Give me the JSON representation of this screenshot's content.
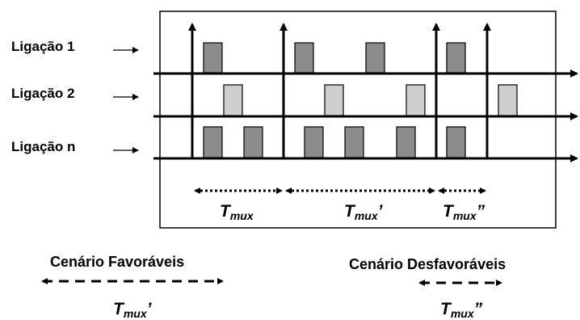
{
  "links": [
    {
      "label": "Ligação 1"
    },
    {
      "label": "Ligação 2"
    },
    {
      "label": "Ligação n"
    }
  ],
  "intervals": [
    {
      "main": "T",
      "sub": "mux",
      "prime": ""
    },
    {
      "main": "T",
      "sub": "mux",
      "prime": "’"
    },
    {
      "main": "T",
      "sub": "mux",
      "prime": "”"
    }
  ],
  "scenarios": {
    "favorable": {
      "title": "Cenário Favoráveis",
      "main": "T",
      "sub": "mux",
      "prime": "’"
    },
    "unfavorable": {
      "title": "Cenário Desfavoráveis",
      "main": "T",
      "sub": "mux",
      "prime": "”"
    }
  },
  "colors": {
    "link1_packet": "#8c8c8c",
    "link2_packet": "#cfcfcf",
    "linkn_packet": "#8c8c8c",
    "stroke": "#000000"
  }
}
